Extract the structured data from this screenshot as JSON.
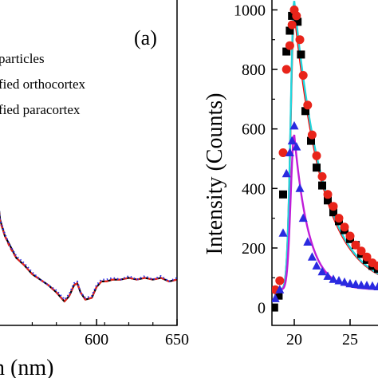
{
  "chart_data": [
    {
      "type": "line",
      "panel_label": "(a)",
      "xlabel": "n (nm)",
      "x_ticks": [
        "600",
        "650"
      ],
      "xlim": [
        535,
        650
      ],
      "ylim": [
        0,
        1
      ],
      "legend_position": "top-right",
      "legend": [
        "particles",
        "fied orthocortex",
        "fied paracortex"
      ],
      "series": [
        {
          "name": "particles",
          "color": "#000000",
          "style": "solid",
          "x": [
            535,
            538,
            540,
            543,
            546,
            550,
            555,
            560,
            565,
            570,
            575,
            580,
            583,
            586,
            588,
            590,
            593,
            597,
            600,
            603,
            606,
            610,
            615,
            620,
            625,
            630,
            635,
            640,
            645,
            650
          ],
          "y": [
            0.78,
            0.62,
            0.45,
            0.36,
            0.31,
            0.24,
            0.2,
            0.15,
            0.12,
            0.09,
            0.05,
            0.0,
            0.03,
            0.09,
            0.1,
            0.05,
            0.01,
            0.02,
            0.08,
            0.11,
            0.11,
            0.12,
            0.12,
            0.13,
            0.12,
            0.13,
            0.12,
            0.13,
            0.11,
            0.12
          ]
        },
        {
          "name": "fied orthocortex",
          "color": "#e8241a",
          "style": "dashed",
          "x": [
            535,
            538,
            540,
            543,
            546,
            550,
            555,
            560,
            565,
            570,
            575,
            580,
            583,
            586,
            588,
            590,
            593,
            597,
            600,
            603,
            606,
            610,
            615,
            620,
            625,
            630,
            635,
            640,
            645,
            650
          ],
          "y": [
            0.77,
            0.61,
            0.44,
            0.36,
            0.3,
            0.24,
            0.2,
            0.15,
            0.12,
            0.09,
            0.05,
            0.0,
            0.03,
            0.09,
            0.1,
            0.05,
            0.01,
            0.02,
            0.08,
            0.11,
            0.11,
            0.12,
            0.12,
            0.13,
            0.12,
            0.13,
            0.12,
            0.13,
            0.11,
            0.12
          ]
        },
        {
          "name": "fied paracortex",
          "color": "#2a2ae0",
          "style": "dotted",
          "x": [
            535,
            538,
            540,
            543,
            546,
            550,
            555,
            560,
            565,
            570,
            575,
            580,
            583,
            586,
            588,
            590,
            593,
            597,
            600,
            603,
            606,
            610,
            615,
            620,
            625,
            630,
            635,
            640,
            645,
            650
          ],
          "y": [
            0.79,
            0.62,
            0.45,
            0.37,
            0.31,
            0.25,
            0.21,
            0.16,
            0.12,
            0.09,
            0.06,
            0.01,
            0.04,
            0.1,
            0.11,
            0.05,
            0.02,
            0.03,
            0.09,
            0.12,
            0.12,
            0.13,
            0.12,
            0.14,
            0.12,
            0.14,
            0.12,
            0.14,
            0.11,
            0.13
          ]
        }
      ]
    },
    {
      "type": "scatter",
      "ylabel": "Intensity (Counts)",
      "y_ticks": [
        "0",
        "200",
        "400",
        "600",
        "800",
        "1000"
      ],
      "x_ticks": [
        "20",
        "25"
      ],
      "xlim": [
        18,
        28
      ],
      "ylim": [
        -60,
        1060
      ],
      "series": [
        {
          "name": "",
          "marker": "square",
          "color": "#000000",
          "x": [
            18.2,
            18.6,
            19.0,
            19.3,
            19.6,
            19.8,
            20.0,
            20.3,
            20.6,
            21.0,
            21.5,
            22.0,
            22.5,
            23.0,
            23.5,
            24.0,
            24.5,
            25.0,
            25.5,
            26.0,
            26.5,
            27.0,
            27.5
          ],
          "y": [
            0,
            40,
            380,
            860,
            930,
            980,
            990,
            960,
            850,
            660,
            560,
            470,
            410,
            360,
            320,
            290,
            260,
            230,
            210,
            180,
            160,
            140,
            130
          ]
        },
        {
          "name": "",
          "marker": "circle",
          "color": "#e8241a",
          "x": [
            18.3,
            18.7,
            19.0,
            19.3,
            19.6,
            19.8,
            20.0,
            20.2,
            20.5,
            20.8,
            21.2,
            21.6,
            22.0,
            22.5,
            23.0,
            23.5,
            24.0,
            24.5,
            25.0,
            25.5,
            26.0,
            26.5,
            27.0,
            27.5
          ],
          "y": [
            60,
            90,
            520,
            800,
            880,
            950,
            1000,
            980,
            900,
            780,
            680,
            580,
            510,
            440,
            380,
            340,
            300,
            270,
            240,
            210,
            190,
            170,
            150,
            140
          ]
        },
        {
          "name": "",
          "marker": "triangle",
          "color": "#2a2ae0",
          "x": [
            18.3,
            18.7,
            19.0,
            19.3,
            19.6,
            19.8,
            20.0,
            20.2,
            20.5,
            20.8,
            21.2,
            21.6,
            22.0,
            22.5,
            23.0,
            23.5,
            24.0,
            24.5,
            25.0,
            25.5,
            26.0,
            26.5,
            27.0,
            27.5
          ],
          "y": [
            30,
            60,
            250,
            450,
            520,
            560,
            610,
            540,
            400,
            300,
            220,
            170,
            140,
            120,
            105,
            95,
            90,
            85,
            80,
            78,
            75,
            74,
            72,
            70
          ]
        }
      ],
      "fits": [
        {
          "color": "#ff0000",
          "peak": 1000,
          "base": 60,
          "tau": 2.6
        },
        {
          "color": "#21d6dd",
          "peak": 1030,
          "base": 60,
          "tau": 2.6
        },
        {
          "color": "#c01cd8",
          "peak": 580,
          "base": 60,
          "tau": 1.3
        }
      ]
    }
  ]
}
